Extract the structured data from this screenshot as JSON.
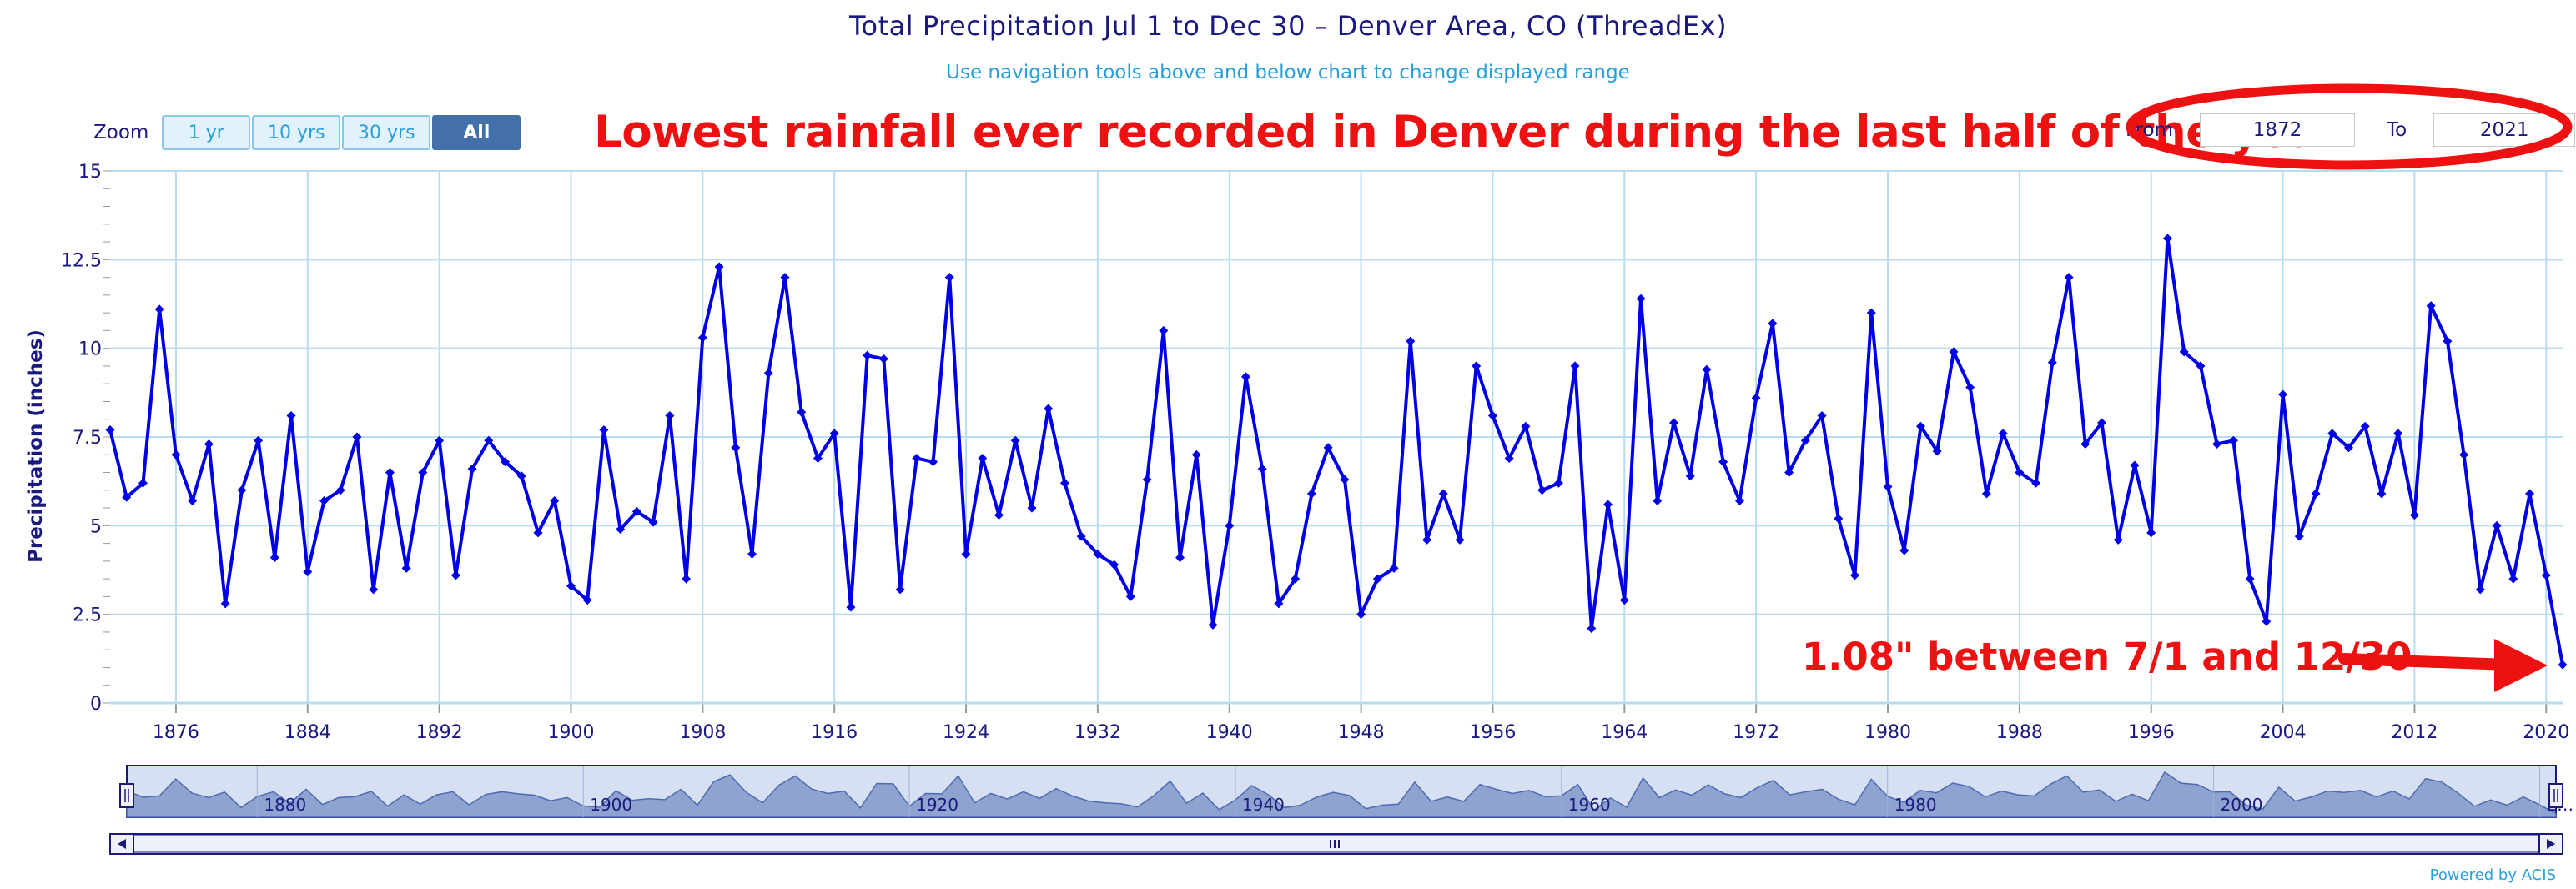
{
  "header": {
    "title": "Total Precipitation Jul 1 to Dec 30 – Denver Area, CO (ThreadEx)",
    "subtitle": "Use navigation tools above and below chart to change displayed range"
  },
  "zoom": {
    "label": "Zoom",
    "buttons": [
      "1 yr",
      "10 yrs",
      "30 yrs",
      "All"
    ],
    "active": "All"
  },
  "range": {
    "from_label": "From",
    "from_value": "1872",
    "to_label": "To",
    "to_value": "2021"
  },
  "annotations": {
    "top": "Lowest rainfall ever recorded in Denver during the last half of the year.",
    "bottom": "1.08\" between 7/1 and 12/30"
  },
  "colors": {
    "line": "#0000e6",
    "annotation": "#ee1111",
    "grid": "#b8dcf0",
    "navigator_fill": "#8fa3d1"
  },
  "footer": {
    "powered": "Powered by ACIS"
  },
  "chart_data": {
    "type": "line",
    "title": "Total Precipitation Jul 1 to Dec 30 – Denver Area, CO (ThreadEx)",
    "ylabel": "Precipitation (inches)",
    "xlabel": "",
    "ylim": [
      0,
      15
    ],
    "xlim": [
      1872,
      2021
    ],
    "y_ticks": [
      "0",
      "2.5",
      "5",
      "7.5",
      "10",
      "12.5",
      "15"
    ],
    "x_ticks": [
      "1876",
      "1884",
      "1892",
      "1900",
      "1908",
      "1916",
      "1924",
      "1932",
      "1940",
      "1948",
      "1956",
      "1964",
      "1972",
      "1980",
      "1988",
      "1996",
      "2004",
      "2012",
      "2020"
    ],
    "navigator_ticks": [
      "1880",
      "1900",
      "1920",
      "1940",
      "1960",
      "1980",
      "2000",
      "2…"
    ],
    "grid": true,
    "legend": "none",
    "x": [
      1872,
      1873,
      1874,
      1875,
      1876,
      1877,
      1878,
      1879,
      1880,
      1881,
      1882,
      1883,
      1884,
      1885,
      1886,
      1887,
      1888,
      1889,
      1890,
      1891,
      1892,
      1893,
      1894,
      1895,
      1896,
      1897,
      1898,
      1899,
      1900,
      1901,
      1902,
      1903,
      1904,
      1905,
      1906,
      1907,
      1908,
      1909,
      1910,
      1911,
      1912,
      1913,
      1914,
      1915,
      1916,
      1917,
      1918,
      1919,
      1920,
      1921,
      1922,
      1923,
      1924,
      1925,
      1926,
      1927,
      1928,
      1929,
      1930,
      1931,
      1932,
      1933,
      1934,
      1935,
      1936,
      1937,
      1938,
      1939,
      1940,
      1941,
      1942,
      1943,
      1944,
      1945,
      1946,
      1947,
      1948,
      1949,
      1950,
      1951,
      1952,
      1953,
      1954,
      1955,
      1956,
      1957,
      1958,
      1959,
      1960,
      1961,
      1962,
      1963,
      1964,
      1965,
      1966,
      1967,
      1968,
      1969,
      1970,
      1971,
      1972,
      1973,
      1974,
      1975,
      1976,
      1977,
      1978,
      1979,
      1980,
      1981,
      1982,
      1983,
      1984,
      1985,
      1986,
      1987,
      1988,
      1989,
      1990,
      1991,
      1992,
      1993,
      1994,
      1995,
      1996,
      1997,
      1998,
      1999,
      2000,
      2001,
      2002,
      2003,
      2004,
      2005,
      2006,
      2007,
      2008,
      2009,
      2010,
      2011,
      2012,
      2013,
      2014,
      2015,
      2016,
      2017,
      2018,
      2019,
      2020,
      2021
    ],
    "series": [
      {
        "values": [
          7.7,
          5.8,
          6.2,
          11.1,
          7.0,
          5.7,
          7.3,
          2.8,
          6.0,
          7.4,
          4.1,
          8.1,
          3.7,
          5.7,
          6.0,
          7.5,
          3.2,
          6.5,
          3.8,
          6.5,
          7.4,
          3.6,
          6.6,
          7.4,
          6.8,
          6.4,
          4.8,
          5.7,
          3.3,
          2.9,
          7.7,
          4.9,
          5.4,
          5.1,
          8.1,
          3.5,
          10.3,
          12.3,
          7.2,
          4.2,
          9.3,
          12.0,
          8.2,
          6.9,
          7.6,
          2.7,
          9.8,
          9.7,
          3.2,
          6.9,
          6.8,
          12.0,
          4.2,
          6.9,
          5.3,
          7.4,
          5.5,
          8.3,
          6.2,
          4.7,
          4.2,
          3.9,
          3.0,
          6.3,
          10.5,
          4.1,
          7.0,
          2.2,
          5.0,
          9.2,
          6.6,
          2.8,
          3.5,
          5.9,
          7.2,
          6.3,
          2.5,
          3.5,
          3.8,
          10.2,
          4.6,
          5.9,
          4.6,
          9.5,
          8.1,
          6.9,
          7.8,
          6.0,
          6.2,
          9.5,
          2.1,
          5.6,
          2.9,
          11.4,
          5.7,
          7.9,
          6.4,
          9.4,
          6.8,
          5.7,
          8.6,
          10.7,
          6.5,
          7.4,
          8.1,
          5.2,
          3.6,
          11.0,
          6.1,
          4.3,
          7.8,
          7.1,
          9.9,
          8.9,
          5.9,
          7.6,
          6.5,
          6.2,
          9.6,
          12.0,
          7.3,
          7.9,
          4.6,
          6.7,
          4.8,
          13.1,
          9.9,
          9.5,
          7.3,
          7.4,
          3.5,
          2.3,
          8.7,
          4.7,
          5.9,
          7.6,
          7.2,
          7.8,
          5.9,
          7.6,
          5.3,
          11.2,
          10.2,
          7.0,
          3.2,
          5.0,
          3.5,
          5.9,
          3.6,
          1.08
        ]
      }
    ]
  }
}
